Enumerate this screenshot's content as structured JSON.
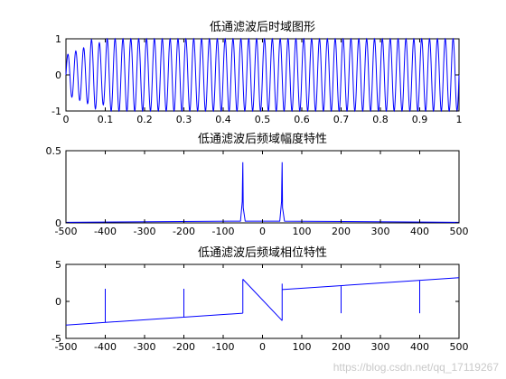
{
  "watermark": "https://blog.csdn.net/qq_17119267",
  "colors": {
    "line": "#0000ff",
    "axis": "#000000",
    "background": "#ffffff"
  },
  "chart_data": [
    {
      "type": "line",
      "title": "低通滤波后时域图形",
      "xlim": [
        0,
        1
      ],
      "ylim": [
        -1,
        1
      ],
      "xticks": [
        0,
        0.1,
        0.2,
        0.3,
        0.4,
        0.5,
        0.6,
        0.7,
        0.8,
        0.9,
        1
      ],
      "xtick_labels": [
        "0",
        "0.1",
        "0.2",
        "0.3",
        "0.4",
        "0.5",
        "0.6",
        "0.7",
        "0.8",
        "0.9",
        "1"
      ],
      "yticks": [
        -1,
        0,
        1
      ],
      "ytick_labels": [
        "-1",
        "0",
        "1"
      ],
      "grid": false,
      "series": [
        {
          "frequency_hz": 50,
          "amplitude": 1,
          "transient_end_s": 0.1,
          "note": "near-constant 50 Hz sinusoid after a short startup transient"
        }
      ]
    },
    {
      "type": "line",
      "title": "低通滤波后频域幅度特性",
      "xlim": [
        -500,
        500
      ],
      "ylim": [
        0,
        0.5
      ],
      "xticks": [
        -500,
        -400,
        -300,
        -200,
        -100,
        0,
        100,
        200,
        300,
        400,
        500
      ],
      "xtick_labels": [
        "-500",
        "-400",
        "-300",
        "-200",
        "-100",
        "0",
        "100",
        "200",
        "300",
        "400",
        "500"
      ],
      "yticks": [
        0,
        0.5
      ],
      "ytick_labels": [
        "0",
        "0.5"
      ],
      "grid": false,
      "series": [
        {
          "peaks": [
            {
              "x": -50,
              "y": 0.42
            },
            {
              "x": 50,
              "y": 0.42
            }
          ],
          "baseline": 0.004
        }
      ]
    },
    {
      "type": "line",
      "title": "低通滤波后频域相位特性",
      "xlim": [
        -500,
        500
      ],
      "ylim": [
        -5,
        5
      ],
      "xticks": [
        -500,
        -400,
        -300,
        -200,
        -100,
        0,
        100,
        200,
        300,
        400,
        500
      ],
      "xtick_labels": [
        "-500",
        "-400",
        "-300",
        "-200",
        "-100",
        "0",
        "100",
        "200",
        "300",
        "400",
        "500"
      ],
      "yticks": [
        -5,
        0,
        5
      ],
      "ytick_labels": [
        "-5",
        "0",
        "5"
      ],
      "grid": false,
      "series": [
        {
          "segments": [
            {
              "x": [
                -500,
                -50
              ],
              "y": [
                -3.2,
                -1.6
              ]
            },
            {
              "x": [
                -50,
                50
              ],
              "y": [
                3.0,
                -2.6
              ]
            },
            {
              "x": [
                50,
                500
              ],
              "y": [
                1.6,
                3.2
              ]
            }
          ],
          "spikes": [
            {
              "x": -400,
              "to": 1.7
            },
            {
              "x": -200,
              "to": 1.7
            },
            {
              "x": 200,
              "to": -1.6
            },
            {
              "x": 400,
              "to": -1.6
            }
          ]
        }
      ]
    }
  ]
}
